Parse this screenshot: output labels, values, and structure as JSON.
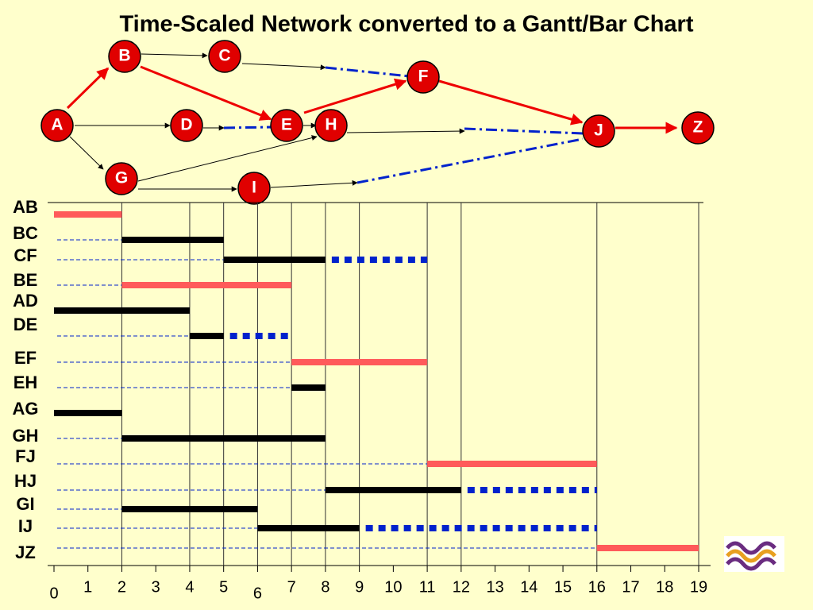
{
  "title": "Time-Scaled Network converted to a Gantt/Bar Chart",
  "nodes": [
    "A",
    "B",
    "C",
    "D",
    "E",
    "H",
    "F",
    "J",
    "Z",
    "G",
    "I"
  ],
  "gantt": {
    "xlim": [
      0,
      19
    ],
    "xticks": [
      0,
      1,
      2,
      3,
      4,
      5,
      6,
      7,
      8,
      9,
      10,
      11,
      12,
      13,
      14,
      15,
      16,
      17,
      18,
      19
    ],
    "gridlines": [
      2,
      4,
      5,
      6,
      7,
      8,
      9,
      11,
      12,
      16,
      19
    ],
    "rows": [
      {
        "name": "AB",
        "start": 0,
        "end": 2,
        "critical": true
      },
      {
        "name": "BC",
        "start": 2,
        "end": 5,
        "critical": false
      },
      {
        "name": "CF",
        "start": 5,
        "end": 8,
        "critical": false,
        "float_end": 11
      },
      {
        "name": "BE",
        "start": 2,
        "end": 7,
        "critical": true
      },
      {
        "name": "AD",
        "start": 0,
        "end": 4,
        "critical": false
      },
      {
        "name": "DE",
        "start": 4,
        "end": 5,
        "critical": false,
        "float_end": 7
      },
      {
        "name": "EF",
        "start": 7,
        "end": 11,
        "critical": true
      },
      {
        "name": "EH",
        "start": 7,
        "end": 8,
        "critical": false
      },
      {
        "name": "AG",
        "start": 0,
        "end": 2,
        "critical": false
      },
      {
        "name": "GH",
        "start": 2,
        "end": 8,
        "critical": false
      },
      {
        "name": "FJ",
        "start": 11,
        "end": 16,
        "critical": true
      },
      {
        "name": "HJ",
        "start": 8,
        "end": 12,
        "critical": false,
        "float_end": 16
      },
      {
        "name": "GI",
        "start": 2,
        "end": 6,
        "critical": false
      },
      {
        "name": "IJ",
        "start": 6,
        "end": 9,
        "critical": false,
        "float_end": 16
      },
      {
        "name": "JZ",
        "start": 16,
        "end": 19,
        "critical": true
      }
    ]
  }
}
